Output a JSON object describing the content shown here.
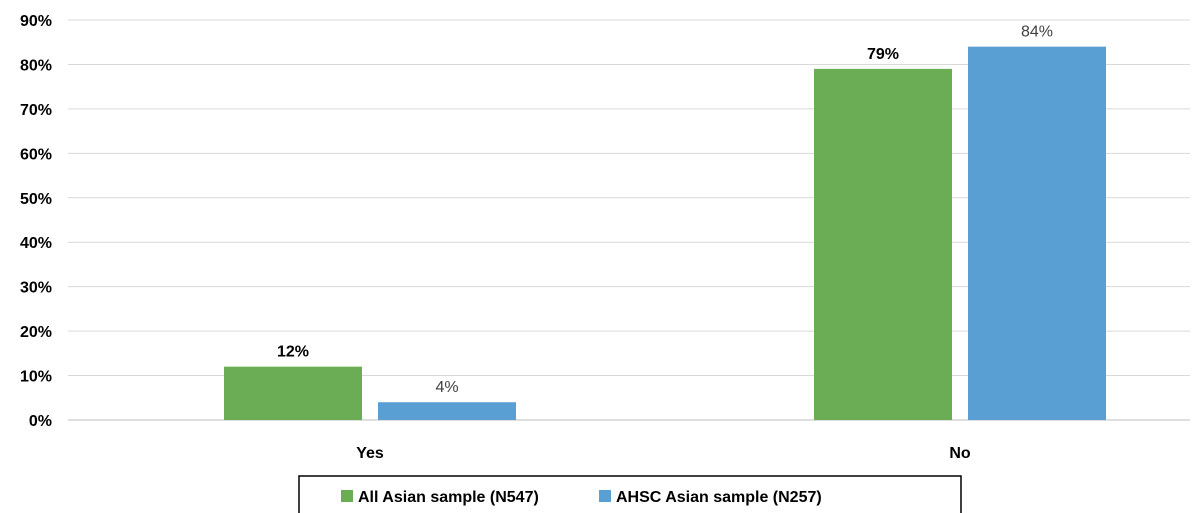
{
  "chart_data": {
    "type": "bar",
    "categories": [
      "Yes",
      "No"
    ],
    "series": [
      {
        "name": "All Asian sample (N547)",
        "values": [
          12,
          79
        ],
        "color": "#6aad55",
        "labels": [
          "12%",
          "79%"
        ],
        "label_weight": "bold"
      },
      {
        "name": "AHSC Asian sample (N257)",
        "values": [
          4,
          84
        ],
        "color": "#5a9fd4",
        "labels": [
          "4%",
          "84%"
        ],
        "label_weight": "normal"
      }
    ],
    "ylim": [
      0,
      90
    ],
    "y_ticks": [
      "0%",
      "10%",
      "20%",
      "30%",
      "40%",
      "50%",
      "60%",
      "70%",
      "80%",
      "90%"
    ],
    "y_tick_values": [
      0,
      10,
      20,
      30,
      40,
      50,
      60,
      70,
      80,
      90
    ],
    "grid": true,
    "legend_position": "bottom",
    "gridline_color": "#d9d9d9"
  }
}
